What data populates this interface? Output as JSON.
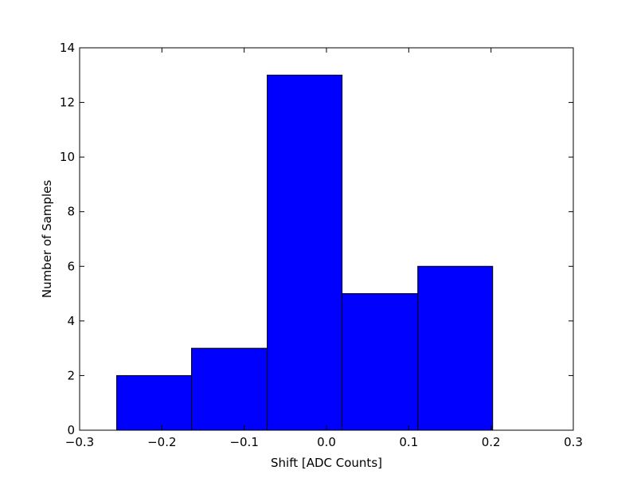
{
  "chart_data": {
    "type": "histogram",
    "xlabel": "Shift [ADC Counts]",
    "ylabel": "Number of Samples",
    "bins": [
      -0.255,
      -0.164,
      -0.072,
      0.019,
      0.111,
      0.202
    ],
    "values": [
      2,
      3,
      13,
      5,
      6
    ],
    "color": "#0000ff",
    "xlim": [
      -0.3,
      0.3
    ],
    "xticks": [
      {
        "value": -0.3,
        "label": "−0.3"
      },
      {
        "value": -0.2,
        "label": "−0.2"
      },
      {
        "value": -0.1,
        "label": "−0.1"
      },
      {
        "value": 0,
        "label": "0.0"
      },
      0.1,
      0.2,
      0.3
    ],
    "ylim": [
      0,
      14
    ],
    "yticks": [
      0,
      2,
      4,
      6,
      8,
      10,
      12,
      14
    ]
  }
}
